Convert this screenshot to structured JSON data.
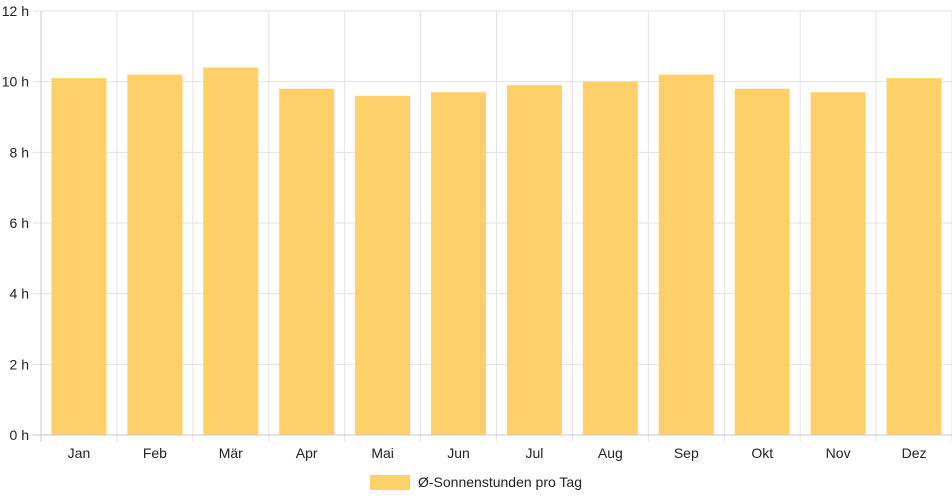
{
  "chart_data": {
    "type": "bar",
    "categories": [
      "Jan",
      "Feb",
      "Mär",
      "Apr",
      "Mai",
      "Jun",
      "Jul",
      "Aug",
      "Sep",
      "Okt",
      "Nov",
      "Dez"
    ],
    "series": [
      {
        "name": "Ø-Sonnenstunden pro Tag",
        "values": [
          10.1,
          10.2,
          10.4,
          9.8,
          9.6,
          9.7,
          9.9,
          10.0,
          10.2,
          9.8,
          9.7,
          10.1
        ]
      }
    ],
    "ylim": [
      0,
      12
    ],
    "yticks": [
      0,
      2,
      4,
      6,
      8,
      10,
      12
    ],
    "ytick_labels": [
      "0 h",
      "2 h",
      "4 h",
      "6 h",
      "8 h",
      "10 h",
      "12 h"
    ],
    "grid": true,
    "legend": "bottom-center",
    "colors": {
      "bar": "#fdd06a",
      "grid": "#e3e3e3",
      "axis": "#c8c8c8",
      "text": "#222222"
    }
  }
}
